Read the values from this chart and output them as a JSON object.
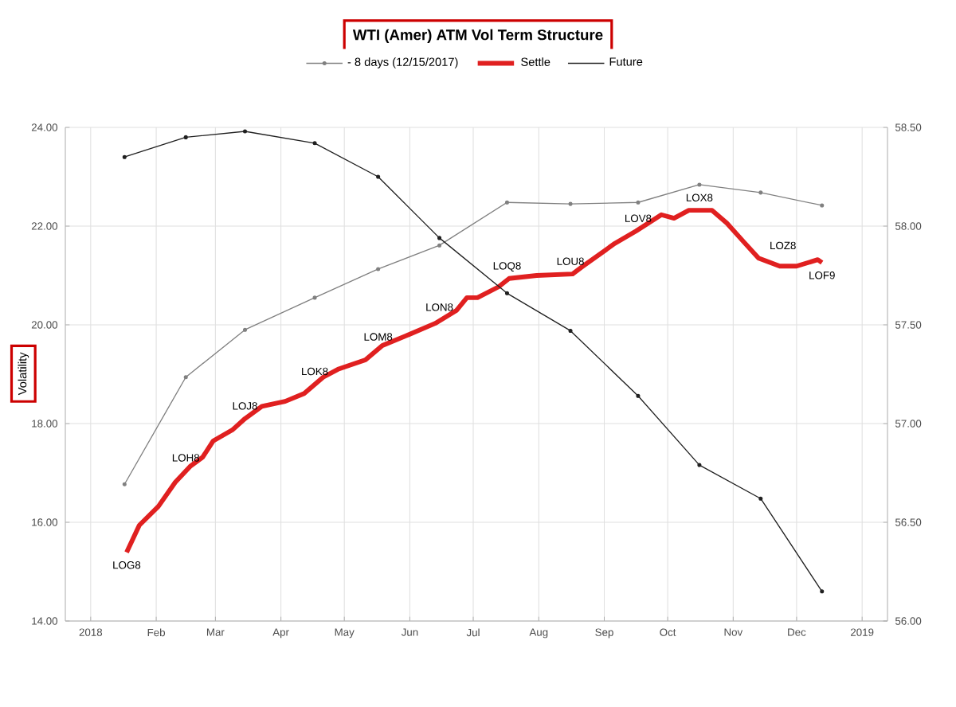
{
  "chart_data": {
    "type": "line",
    "title": "WTI (Amer) ATM Vol Term Structure",
    "ylabel": "Volatility",
    "xlim": [
      "2017-12-20",
      "2019-01-13"
    ],
    "xticks": [
      {
        "value": "2018-01-01",
        "label": "2018"
      },
      {
        "value": "2018-02-01",
        "label": "Feb"
      },
      {
        "value": "2018-03-01",
        "label": "Mar"
      },
      {
        "value": "2018-04-01",
        "label": "Apr"
      },
      {
        "value": "2018-05-01",
        "label": "May"
      },
      {
        "value": "2018-06-01",
        "label": "Jun"
      },
      {
        "value": "2018-07-01",
        "label": "Jul"
      },
      {
        "value": "2018-08-01",
        "label": "Aug"
      },
      {
        "value": "2018-09-01",
        "label": "Sep"
      },
      {
        "value": "2018-10-01",
        "label": "Oct"
      },
      {
        "value": "2018-11-01",
        "label": "Nov"
      },
      {
        "value": "2018-12-01",
        "label": "Dec"
      },
      {
        "value": "2019-01-01",
        "label": "2019"
      }
    ],
    "ylim": [
      14,
      24
    ],
    "yticks": [
      {
        "value": 14,
        "label": "14.00"
      },
      {
        "value": 16,
        "label": "16.00"
      },
      {
        "value": 18,
        "label": "18.00"
      },
      {
        "value": 20,
        "label": "20.00"
      },
      {
        "value": 22,
        "label": "22.00"
      },
      {
        "value": 24,
        "label": "24.00"
      }
    ],
    "y2lim": [
      56,
      58.5
    ],
    "y2ticks": [
      {
        "value": 56,
        "label": "56.00"
      },
      {
        "value": 56.5,
        "label": "56.50"
      },
      {
        "value": 57,
        "label": "57.00"
      },
      {
        "value": 57.5,
        "label": "57.50"
      },
      {
        "value": 58,
        "label": "58.00"
      },
      {
        "value": 58.5,
        "label": "58.50"
      }
    ],
    "grid": true,
    "legend": "top",
    "series": [
      {
        "name": "- 8 days (12/15/2017)",
        "color": "#808080",
        "marker": "circle",
        "x": [
          "2018-01-17",
          "2018-02-15",
          "2018-03-15",
          "2018-04-17",
          "2018-05-17",
          "2018-06-15",
          "2018-07-17",
          "2018-08-16",
          "2018-09-17",
          "2018-10-16",
          "2018-11-14",
          "2018-12-13"
        ],
        "values": [
          16.77,
          18.94,
          19.9,
          20.55,
          21.13,
          21.61,
          22.48,
          22.45,
          22.48,
          22.84,
          22.68,
          22.42
        ]
      },
      {
        "name": "Settle",
        "color": "#e02020",
        "marker": "none",
        "x": [
          "2018-01-18",
          "2018-01-24",
          "2018-02-02",
          "2018-02-10",
          "2018-02-17",
          "2018-02-23",
          "2018-02-28",
          "2018-03-09",
          "2018-03-15",
          "2018-03-23",
          "2018-04-03",
          "2018-04-12",
          "2018-04-21",
          "2018-04-28",
          "2018-05-11",
          "2018-05-19",
          "2018-06-01",
          "2018-06-13",
          "2018-06-23",
          "2018-06-28",
          "2018-07-03",
          "2018-07-13",
          "2018-07-18",
          "2018-07-31",
          "2018-08-17",
          "2018-08-22",
          "2018-09-06",
          "2018-09-16",
          "2018-09-28",
          "2018-10-04",
          "2018-10-11",
          "2018-10-22",
          "2018-10-29",
          "2018-11-06",
          "2018-11-13",
          "2018-11-23",
          "2018-12-01",
          "2018-12-11",
          "2018-12-13"
        ],
        "values": [
          15.39,
          15.94,
          16.32,
          16.81,
          17.13,
          17.32,
          17.65,
          17.87,
          18.1,
          18.35,
          18.45,
          18.61,
          18.94,
          19.1,
          19.29,
          19.58,
          19.81,
          20.03,
          20.29,
          20.55,
          20.55,
          20.77,
          20.94,
          21.0,
          21.03,
          21.19,
          21.65,
          21.9,
          22.23,
          22.16,
          22.32,
          22.32,
          22.06,
          21.68,
          21.35,
          21.19,
          21.19,
          21.32,
          21.26
        ]
      },
      {
        "name": "Future",
        "color": "#202020",
        "marker": "circle",
        "axis": "y2",
        "x": [
          "2018-01-17",
          "2018-02-15",
          "2018-03-15",
          "2018-04-17",
          "2018-05-17",
          "2018-06-15",
          "2018-07-17",
          "2018-08-16",
          "2018-09-17",
          "2018-10-16",
          "2018-11-14",
          "2018-12-13"
        ],
        "values": [
          58.35,
          58.45,
          58.48,
          58.42,
          58.25,
          57.94,
          57.66,
          57.47,
          57.14,
          56.79,
          56.62,
          56.15
        ]
      }
    ],
    "annotations": [
      {
        "text": "LOG8",
        "x": "2018-01-18",
        "y": 15.39
      },
      {
        "text": "LOH8",
        "x": "2018-02-15",
        "y": 17.05
      },
      {
        "text": "LOJ8",
        "x": "2018-03-15",
        "y": 18.1
      },
      {
        "text": "LOK8",
        "x": "2018-04-17",
        "y": 18.8
      },
      {
        "text": "LOM8",
        "x": "2018-05-17",
        "y": 19.5
      },
      {
        "text": "LON8",
        "x": "2018-06-15",
        "y": 20.1
      },
      {
        "text": "LOQ8",
        "x": "2018-07-17",
        "y": 20.9
      },
      {
        "text": "LOU8",
        "x": "2018-08-16",
        "y": 21.03
      },
      {
        "text": "LOV8",
        "x": "2018-09-17",
        "y": 21.9
      },
      {
        "text": "LOX8",
        "x": "2018-10-16",
        "y": 22.32
      },
      {
        "text": "LOZ8",
        "x": "2018-11-14",
        "y": 21.35
      },
      {
        "text": "LOF9",
        "x": "2018-12-13",
        "y": 21.26
      }
    ]
  }
}
